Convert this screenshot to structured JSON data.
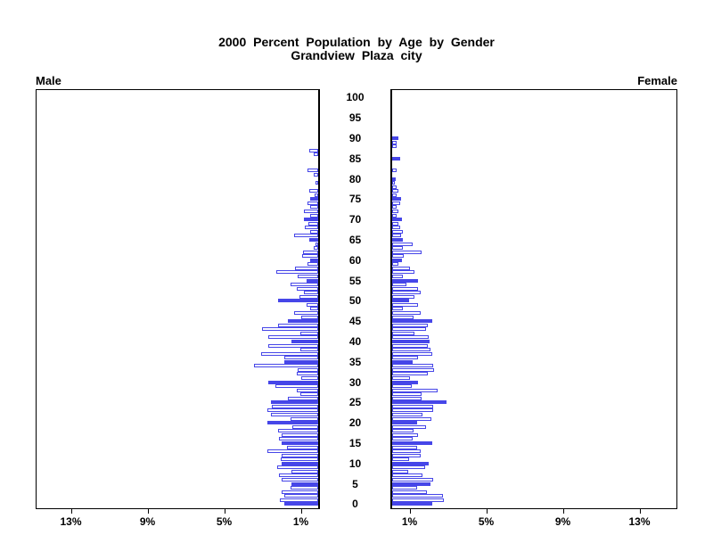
{
  "title": {
    "line1": "2000 Percent Population by Age by Gender",
    "line2": "Grandview Plaza city"
  },
  "panel_labels": {
    "male": "Male",
    "female": "Female"
  },
  "colors": {
    "bar_blue": "#4646E8",
    "bar_open_fill": "#FFFFFF",
    "axis": "#000000"
  },
  "chart_data": {
    "type": "bar",
    "subtype": "population-pyramid",
    "title": "2000 Percent Population by Age by Gender",
    "subtitle": "Grandview Plaza city",
    "orientation": "horizontal-mirrored",
    "age_min": 0,
    "age_max": 100,
    "age_label_step": 5,
    "highlighted_age_multiple": 5,
    "x_axis": {
      "tick_percents": [
        1,
        5,
        9,
        13
      ],
      "tick_suffix": "%",
      "max_percent": 14.84
    },
    "y_axis_labels": [
      "0",
      "5",
      "10",
      "15",
      "20",
      "25",
      "30",
      "35",
      "40",
      "45",
      "50",
      "55",
      "60",
      "65",
      "70",
      "75",
      "80",
      "85",
      "90",
      "95",
      "100"
    ],
    "series": [
      {
        "name": "Male",
        "values": [
          1.75,
          2.0,
          1.75,
          1.9,
          1.45,
          1.4,
          1.9,
          2.05,
          1.4,
          2.15,
          1.9,
          1.95,
          1.9,
          2.65,
          1.65,
          1.9,
          2.05,
          1.9,
          2.1,
          1.35,
          2.65,
          1.45,
          2.45,
          2.65,
          2.4,
          2.45,
          1.6,
          0.95,
          1.1,
          2.25,
          2.6,
          0.9,
          1.1,
          1.05,
          3.35,
          1.75,
          1.75,
          3.0,
          0.95,
          2.6,
          1.4,
          2.6,
          0.95,
          2.95,
          2.1,
          1.6,
          0.9,
          1.25,
          0.4,
          0.6,
          2.1,
          1.0,
          0.75,
          1.1,
          1.45,
          0.6,
          1.05,
          2.2,
          1.2,
          0.55,
          0.4,
          0.85,
          0.8,
          0.25,
          0.15,
          0.45,
          1.25,
          0.4,
          0.7,
          0.5,
          0.75,
          0.4,
          0.75,
          0.4,
          0.55,
          0.4,
          0.2,
          0.45,
          0,
          0.15,
          0,
          0.25,
          0.55,
          0,
          0,
          0,
          0.25,
          0.45,
          0,
          0,
          0,
          0,
          0,
          0,
          0,
          0,
          0,
          0,
          0,
          0,
          0
        ]
      },
      {
        "name": "Female",
        "values": [
          2.1,
          2.7,
          2.65,
          1.8,
          1.3,
          2.0,
          2.15,
          1.6,
          0.85,
          1.7,
          1.9,
          0.9,
          1.5,
          1.5,
          1.3,
          2.1,
          1.05,
          1.35,
          1.1,
          1.75,
          1.3,
          2.05,
          1.6,
          2.15,
          2.15,
          2.85,
          1.55,
          1.55,
          2.35,
          1.0,
          1.35,
          0.95,
          1.85,
          2.2,
          2.15,
          1.05,
          1.35,
          2.1,
          2.0,
          1.85,
          1.95,
          1.9,
          1.15,
          1.75,
          1.85,
          2.1,
          1.1,
          1.5,
          0.55,
          1.35,
          0.9,
          1.15,
          1.5,
          1.35,
          0.75,
          1.35,
          0.55,
          1.15,
          0.95,
          0.3,
          0.5,
          0.6,
          1.55,
          0.55,
          1.05,
          0.55,
          0.45,
          0.55,
          0.4,
          0.3,
          0.5,
          0.25,
          0.3,
          0.25,
          0.4,
          0.45,
          0.25,
          0.3,
          0.25,
          0.15,
          0.2,
          0,
          0.25,
          0,
          0,
          0.4,
          0,
          0,
          0.25,
          0.25,
          0.3,
          0,
          0,
          0,
          0,
          0,
          0,
          0,
          0,
          0,
          0
        ]
      }
    ],
    "legend": "none",
    "grid": false
  }
}
